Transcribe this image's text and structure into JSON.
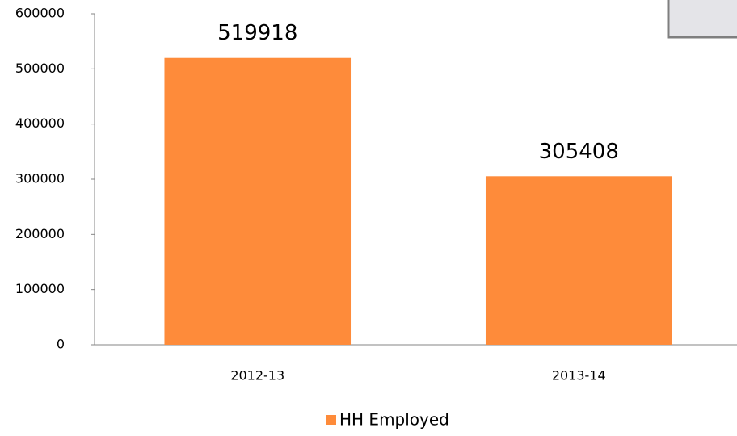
{
  "chart_data": {
    "type": "bar",
    "categories": [
      "2012-13",
      "2013-14"
    ],
    "series": [
      {
        "name": "HH Employed",
        "color": "#fe8b3a",
        "values": [
          519918,
          305408
        ]
      }
    ],
    "ylim": [
      0,
      600000
    ],
    "yticks": [
      0,
      100000,
      200000,
      300000,
      400000,
      500000,
      600000
    ],
    "grid": false,
    "legend": "bottom"
  }
}
